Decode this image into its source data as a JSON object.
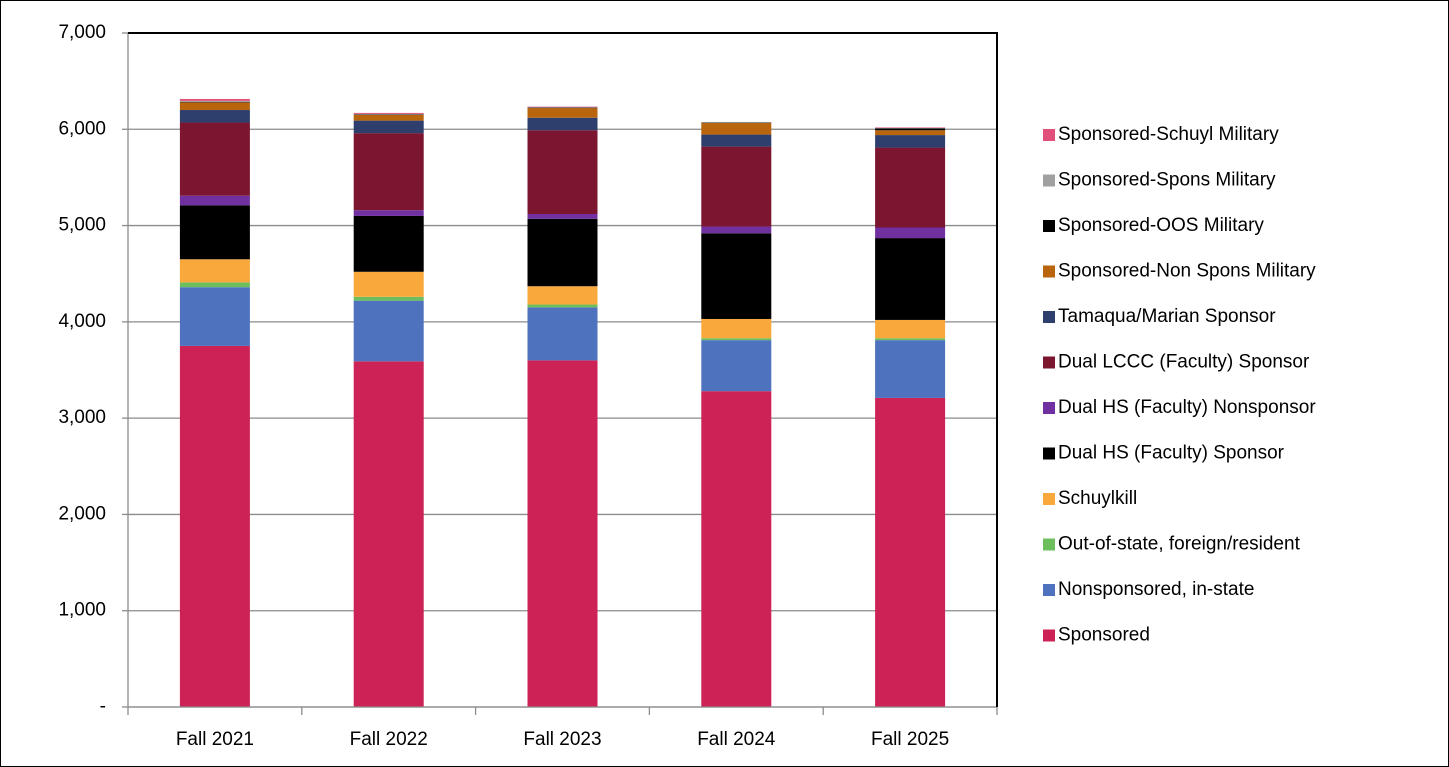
{
  "chart_data": {
    "type": "stacked_bar",
    "categories": [
      "Fall 2021",
      "Fall 2022",
      "Fall 2023",
      "Fall 2024",
      "Fall 2025"
    ],
    "series": [
      {
        "name": "Sponsored",
        "color": "#cc2255",
        "values": [
          3750,
          3590,
          3600,
          3280,
          3210
        ]
      },
      {
        "name": "Nonsponsored, in-state",
        "color": "#4f72be",
        "values": [
          610,
          630,
          550,
          530,
          600
        ]
      },
      {
        "name": "Out-of-state, foreign/resident",
        "color": "#6dbf5e",
        "values": [
          50,
          40,
          30,
          20,
          20
        ]
      },
      {
        "name": "Schuylkill",
        "color": "#f9a83b",
        "values": [
          240,
          260,
          190,
          200,
          190
        ]
      },
      {
        "name": "Dual HS (Faculty) Sponsor",
        "color": "#000000",
        "values": [
          560,
          580,
          700,
          890,
          850
        ]
      },
      {
        "name": "Dual HS (Faculty) Nonsponsor",
        "color": "#7030a0",
        "values": [
          100,
          60,
          50,
          70,
          110
        ]
      },
      {
        "name": "Dual LCCC (Faculty) Sponsor",
        "color": "#7b1530",
        "values": [
          760,
          800,
          870,
          830,
          830
        ]
      },
      {
        "name": "Tamaqua/Marian Sponsor",
        "color": "#2e3f6e",
        "values": [
          130,
          130,
          130,
          125,
          130
        ]
      },
      {
        "name": "Sponsored-Non Spons Military",
        "color": "#b8650e",
        "values": [
          80,
          60,
          100,
          120,
          50
        ]
      },
      {
        "name": "Sponsored-OOS Military",
        "color": "#000000",
        "values": [
          5,
          5,
          5,
          5,
          20
        ]
      },
      {
        "name": "Sponsored-Spons Military",
        "color": "#a0a0a0",
        "values": [
          10,
          5,
          5,
          0,
          5
        ]
      },
      {
        "name": "Sponsored-Schuyl Military",
        "color": "#e0507a",
        "values": [
          20,
          10,
          5,
          0,
          5
        ]
      }
    ],
    "ylim": [
      0,
      7000
    ],
    "yticks": [
      {
        "value": 0,
        "label": "-"
      },
      {
        "value": 1000,
        "label": "1,000"
      },
      {
        "value": 2000,
        "label": "2,000"
      },
      {
        "value": 3000,
        "label": "3,000"
      },
      {
        "value": 4000,
        "label": "4,000"
      },
      {
        "value": 5000,
        "label": "5,000"
      },
      {
        "value": 6000,
        "label": "6,000"
      },
      {
        "value": 7000,
        "label": "7,000"
      }
    ],
    "grid": true,
    "legend": "right"
  }
}
